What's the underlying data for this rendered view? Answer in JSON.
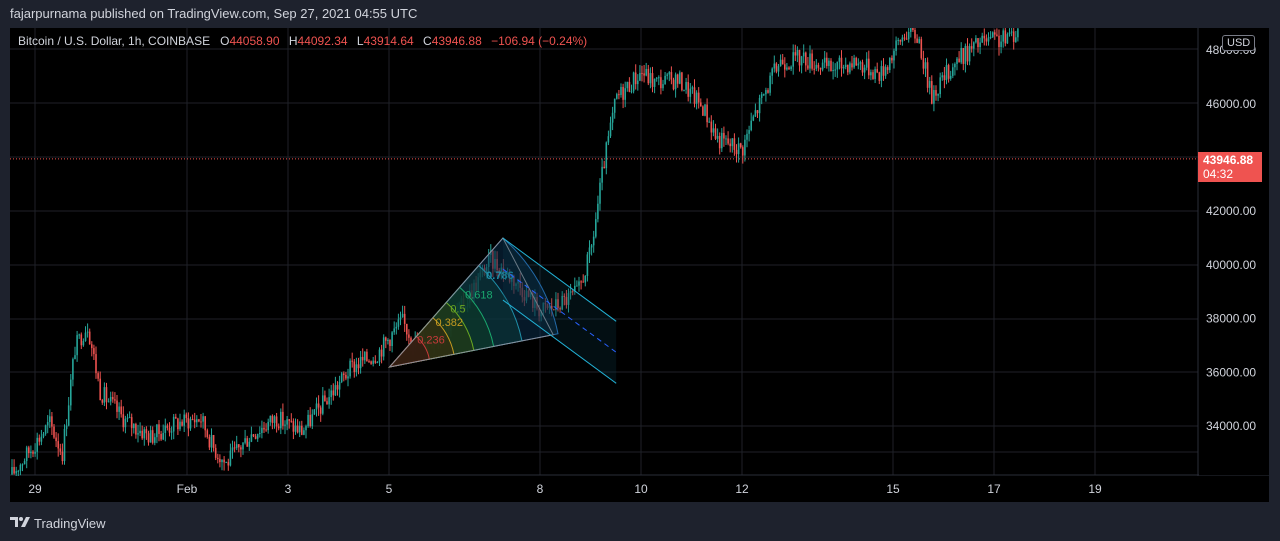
{
  "header": {
    "publisher": "fajarpurnama published on TradingView.com, Sep 27, 2021 04:55 UTC"
  },
  "legend": {
    "symbol": "Bitcoin / U.S. Dollar, 1h, COINBASE",
    "open_key": "O",
    "open": "44058.90",
    "high_key": "H",
    "high": "44092.34",
    "low_key": "L",
    "low": "43914.64",
    "close_key": "C",
    "close": "43946.88",
    "change": "−106.94 (−0.24%)"
  },
  "currency": "USD",
  "price_tag": {
    "price": "43946.88",
    "countdown": "04:32"
  },
  "footer": {
    "brand": "TradingView",
    "brand_icon": "tradingview-logo-icon"
  },
  "colors": {
    "up": "#26a69a",
    "down": "#ef5350",
    "grid": "#1f2128",
    "axis_text": "#d1d4dc",
    "channel": "#22b2d6",
    "price_line": "#ef5350"
  },
  "chart_data": {
    "type": "candlestick",
    "interval": "1h",
    "grid": true,
    "x_ticks": [
      "29",
      "Feb",
      "3",
      "5",
      "8",
      "10",
      "12",
      "15",
      "17",
      "19"
    ],
    "y_ticks": [
      "34000.00",
      "36000.00",
      "38000.00",
      "40000.00",
      "42000.00",
      "46000.00",
      "48000.00"
    ],
    "ylim": [
      32000,
      48800
    ],
    "last_price": 43946.88,
    "close_path": [
      {
        "x": "Jan 28 00:00",
        "y": 32200
      },
      {
        "x": "Jan 28 18:00",
        "y": 34100
      },
      {
        "x": "Jan 29 00:00",
        "y": 33000
      },
      {
        "x": "Jan 29 06:00",
        "y": 36900
      },
      {
        "x": "Jan 29 12:00",
        "y": 37800
      },
      {
        "x": "Jan 29 18:00",
        "y": 35300
      },
      {
        "x": "Jan 30 06:00",
        "y": 34200
      },
      {
        "x": "Jan 30 18:00",
        "y": 33600
      },
      {
        "x": "Jan 31 06:00",
        "y": 34100
      },
      {
        "x": "Jan 31 18:00",
        "y": 34300
      },
      {
        "x": "Feb 1 00:00",
        "y": 33200
      },
      {
        "x": "Feb 1 06:00",
        "y": 32600
      },
      {
        "x": "Feb 1 18:00",
        "y": 33700
      },
      {
        "x": "Feb 2 06:00",
        "y": 34300
      },
      {
        "x": "Feb 2 18:00",
        "y": 33800
      },
      {
        "x": "Feb 3 06:00",
        "y": 35000
      },
      {
        "x": "Feb 3 18:00",
        "y": 36200
      },
      {
        "x": "Feb 4 06:00",
        "y": 36700
      },
      {
        "x": "Feb 4 18:00",
        "y": 37900
      },
      {
        "x": "Feb 5 00:00",
        "y": 37100
      },
      {
        "x": "Feb 5 12:00",
        "y": 37400
      },
      {
        "x": "Feb 6 00:00",
        "y": 38600
      },
      {
        "x": "Feb 6 12:00",
        "y": 40200
      },
      {
        "x": "Feb 7 00:00",
        "y": 39400
      },
      {
        "x": "Feb 7 12:00",
        "y": 38300
      },
      {
        "x": "Feb 7 18:00",
        "y": 38400
      },
      {
        "x": "Feb 8 06:00",
        "y": 39000
      },
      {
        "x": "Feb 8 12:00",
        "y": 40500
      },
      {
        "x": "Feb 8 18:00",
        "y": 43700
      },
      {
        "x": "Feb 9 00:00",
        "y": 46200
      },
      {
        "x": "Feb 9 12:00",
        "y": 47200
      },
      {
        "x": "Feb 9 18:00",
        "y": 46800
      },
      {
        "x": "Feb 10 06:00",
        "y": 46900
      },
      {
        "x": "Feb 10 18:00",
        "y": 45800
      },
      {
        "x": "Feb 11 00:00",
        "y": 44700
      },
      {
        "x": "Feb 11 12:00",
        "y": 44300
      },
      {
        "x": "Feb 11 18:00",
        "y": 45600
      },
      {
        "x": "Feb 12 06:00",
        "y": 47600
      },
      {
        "x": "Feb 12 18:00",
        "y": 47700
      },
      {
        "x": "Feb 13 06:00",
        "y": 47300
      },
      {
        "x": "Feb 13 18:00",
        "y": 47600
      },
      {
        "x": "Feb 14 06:00",
        "y": 47100
      },
      {
        "x": "Feb 14 18:00",
        "y": 48700
      },
      {
        "x": "Feb 15 00:00",
        "y": 48500
      },
      {
        "x": "Feb 15 06:00",
        "y": 46300
      },
      {
        "x": "Feb 15 18:00",
        "y": 47600
      },
      {
        "x": "Feb 16 06:00",
        "y": 48300
      },
      {
        "x": "Feb 16 18:00",
        "y": 48400
      },
      {
        "x": "Feb 17 00:00",
        "y": 48800
      }
    ],
    "fib_labels": [
      "0.236",
      "0.382",
      "0.5",
      "0.618",
      "0.786"
    ],
    "drawings": {
      "fib_fan_origin": {
        "x": "Feb 4 12:00",
        "y": 36200
      },
      "fib_fan_peak": {
        "x": "Feb 6 18:00",
        "y": 41000
      },
      "fib_fan_end": {
        "x": "Feb 7 18:00",
        "y": 37400
      },
      "channel_start": {
        "x": "Feb 6 18:00",
        "y": 41000
      },
      "channel_end": {
        "x": "Feb 9 00:00",
        "y": 37900
      }
    }
  }
}
